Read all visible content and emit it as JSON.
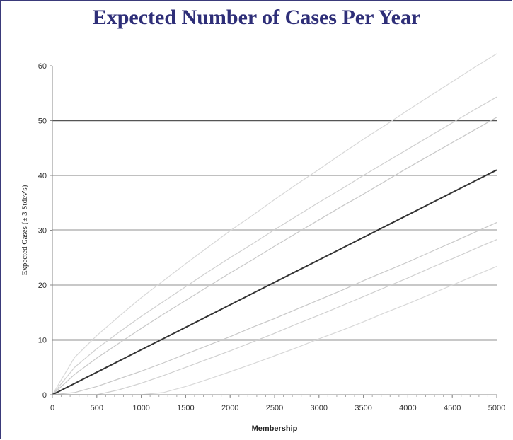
{
  "chart_data": {
    "type": "line",
    "title": "Expected Number of Cases Per Year",
    "xlabel": "Membership",
    "ylabel": "Expected Cases (± 3 Stdev's)",
    "xlim": [
      0,
      5000
    ],
    "ylim": [
      0,
      60
    ],
    "xticks": [
      0,
      500,
      1000,
      1500,
      2000,
      2500,
      3000,
      3500,
      4000,
      4500,
      5000
    ],
    "yticks": [
      0,
      10,
      20,
      30,
      40,
      50,
      60
    ],
    "horizontal_gridlines": [
      {
        "y": 10,
        "color": "#c8c8c8",
        "width": 3
      },
      {
        "y": 20,
        "color": "#c8c8c8",
        "width": 3
      },
      {
        "y": 30,
        "color": "#c8c8c8",
        "width": 3
      },
      {
        "y": 40,
        "color": "#9a9a9a",
        "width": 1.2
      },
      {
        "y": 50,
        "color": "#555555",
        "width": 1.6
      }
    ],
    "x": [
      0,
      250,
      500,
      750,
      1000,
      1250,
      1500,
      1750,
      2000,
      2250,
      2500,
      2750,
      3000,
      3250,
      3500,
      3750,
      4000,
      4250,
      4500,
      4750,
      5000
    ],
    "series": [
      {
        "color": "#d8d8d8",
        "width": 1.2,
        "values": [
          0,
          6.8,
          10.8,
          14.3,
          17.7,
          20.8,
          23.9,
          26.9,
          29.9,
          32.7,
          35.6,
          38.4,
          41.1,
          43.9,
          46.6,
          49.2,
          51.9,
          54.5,
          57.1,
          59.7,
          62.2
        ]
      },
      {
        "color": "#d0d0d0",
        "width": 1.2,
        "values": [
          0,
          5.0,
          8.4,
          11.4,
          14.3,
          17.0,
          19.7,
          22.4,
          25.0,
          27.5,
          30.1,
          32.6,
          35.1,
          37.5,
          40.0,
          42.4,
          44.8,
          47.2,
          49.6,
          52.0,
          54.3
        ]
      },
      {
        "color": "#c8c8c8",
        "width": 1.2,
        "values": [
          0,
          3.7,
          6.7,
          9.4,
          12.1,
          14.7,
          17.2,
          19.7,
          22.2,
          24.6,
          27.1,
          29.5,
          31.9,
          34.3,
          36.6,
          39.0,
          41.4,
          43.7,
          46.0,
          48.3,
          50.6
        ]
      },
      {
        "color": "#333333",
        "width": 2.0,
        "values": [
          0,
          2.05,
          4.1,
          6.15,
          8.2,
          10.25,
          12.3,
          14.35,
          16.4,
          18.45,
          20.5,
          22.55,
          24.6,
          26.65,
          28.7,
          30.75,
          32.8,
          34.85,
          36.9,
          38.95,
          41.0
        ]
      },
      {
        "color": "#c8c8c8",
        "width": 1.2,
        "values": [
          0,
          0.4,
          1.5,
          2.9,
          4.3,
          5.8,
          7.4,
          9.0,
          10.6,
          12.3,
          13.9,
          15.6,
          17.3,
          19.0,
          20.8,
          22.5,
          24.2,
          26.0,
          27.8,
          29.6,
          31.4
        ]
      },
      {
        "color": "#d0d0d0",
        "width": 1.2,
        "values": [
          0,
          0,
          0,
          0.9,
          2.1,
          3.5,
          5.0,
          6.5,
          8.0,
          9.6,
          11.2,
          12.9,
          14.5,
          16.2,
          17.9,
          19.6,
          21.3,
          23.1,
          24.8,
          26.6,
          28.3
        ]
      },
      {
        "color": "#d8d8d8",
        "width": 1.2,
        "values": [
          0,
          0,
          0,
          0,
          0,
          0.4,
          1.5,
          2.8,
          4.2,
          5.6,
          7.1,
          8.6,
          10.2,
          11.7,
          13.3,
          15.0,
          16.6,
          18.3,
          20.0,
          21.7,
          23.4
        ]
      }
    ]
  }
}
